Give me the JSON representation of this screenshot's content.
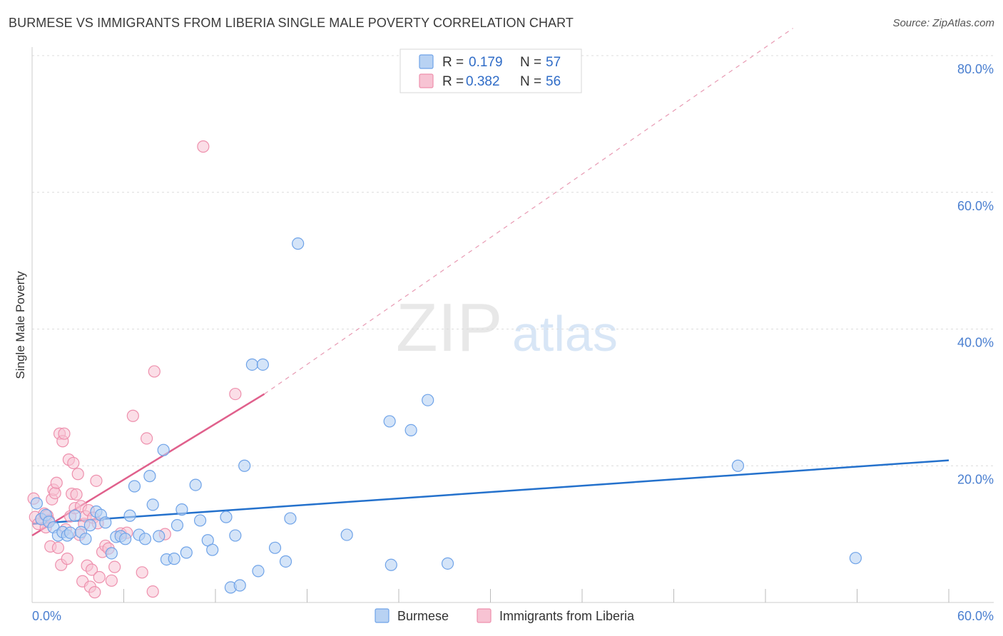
{
  "title": "BURMESE VS IMMIGRANTS FROM LIBERIA SINGLE MALE POVERTY CORRELATION CHART",
  "source": "Source: ZipAtlas.com",
  "watermark": {
    "zip": "ZIP",
    "atlas": "atlas"
  },
  "colors": {
    "blue": "#6fa3e8",
    "blue_fill": "#b8d2f3",
    "blue_line": "#2471cc",
    "pink": "#ee90ad",
    "pink_fill": "#f7c3d3",
    "pink_line": "#e0608c",
    "axis_text": "#4a7fd0",
    "grid": "#dcdcdc"
  },
  "legend": {
    "rows": [
      {
        "r_label": "R = ",
        "r_value": "0.179",
        "n_label": "N = ",
        "n_value": "57"
      },
      {
        "r_label": "R = ",
        "r_value": "0.382",
        "n_label": "N = ",
        "n_value": "56"
      }
    ]
  },
  "bottom_legend": [
    "Burmese",
    "Immigrants from Liberia"
  ],
  "chart_data": {
    "type": "scatter",
    "title": "BURMESE VS IMMIGRANTS FROM LIBERIA SINGLE MALE POVERTY CORRELATION CHART",
    "xlabel": "",
    "ylabel": "Single Male Poverty",
    "xlim": [
      0,
      60
    ],
    "ylim": [
      0,
      80
    ],
    "x_tick_labels": [
      "0.0%",
      "60.0%"
    ],
    "y_ticks": [
      20,
      40,
      60,
      80
    ],
    "y_tick_labels": [
      "20.0%",
      "40.0%",
      "60.0%",
      "80.0%"
    ],
    "series": [
      {
        "name": "Burmese",
        "r": 0.179,
        "n": 57,
        "trend": {
          "x": [
            0,
            60
          ],
          "y": [
            11.5,
            20.8
          ],
          "style": "solid"
        },
        "points": [
          [
            0.3,
            14.5
          ],
          [
            0.6,
            12.2
          ],
          [
            0.9,
            12.8
          ],
          [
            1.1,
            11.8
          ],
          [
            1.4,
            11.0
          ],
          [
            1.7,
            9.8
          ],
          [
            2.0,
            10.3
          ],
          [
            2.3,
            9.8
          ],
          [
            2.5,
            10.2
          ],
          [
            2.8,
            12.7
          ],
          [
            3.2,
            10.3
          ],
          [
            3.5,
            9.3
          ],
          [
            3.8,
            11.3
          ],
          [
            4.2,
            13.3
          ],
          [
            4.5,
            12.8
          ],
          [
            4.8,
            11.7
          ],
          [
            5.2,
            7.2
          ],
          [
            5.5,
            9.6
          ],
          [
            5.8,
            9.7
          ],
          [
            6.1,
            9.3
          ],
          [
            6.4,
            12.7
          ],
          [
            6.7,
            17.0
          ],
          [
            7.0,
            9.9
          ],
          [
            7.4,
            9.3
          ],
          [
            7.7,
            18.5
          ],
          [
            7.9,
            14.3
          ],
          [
            8.3,
            9.7
          ],
          [
            8.6,
            22.3
          ],
          [
            8.8,
            6.3
          ],
          [
            9.3,
            6.4
          ],
          [
            9.5,
            11.3
          ],
          [
            9.8,
            13.6
          ],
          [
            10.1,
            7.3
          ],
          [
            10.7,
            17.2
          ],
          [
            11.0,
            12.0
          ],
          [
            11.5,
            9.1
          ],
          [
            11.8,
            7.7
          ],
          [
            12.7,
            12.5
          ],
          [
            13.0,
            2.2
          ],
          [
            13.3,
            9.8
          ],
          [
            13.6,
            2.5
          ],
          [
            13.9,
            20.0
          ],
          [
            14.4,
            34.8
          ],
          [
            15.1,
            34.8
          ],
          [
            14.8,
            4.6
          ],
          [
            15.9,
            8.0
          ],
          [
            16.6,
            6.0
          ],
          [
            16.9,
            12.3
          ],
          [
            17.4,
            52.5
          ],
          [
            20.6,
            9.9
          ],
          [
            23.4,
            26.5
          ],
          [
            23.5,
            5.5
          ],
          [
            24.8,
            25.2
          ],
          [
            25.9,
            29.6
          ],
          [
            27.2,
            5.7
          ],
          [
            46.2,
            20.0
          ],
          [
            53.9,
            6.5
          ]
        ]
      },
      {
        "name": "Immigrants from Liberia",
        "r": 0.382,
        "n": 56,
        "trend": {
          "x": [
            0,
            15.2
          ],
          "y": [
            9.8,
            30.5
          ],
          "style": "solid"
        },
        "trend_extension": {
          "x": [
            15.2,
            49.8
          ],
          "y": [
            30.5,
            84.0
          ],
          "style": "dashed"
        },
        "points": [
          [
            0.2,
            12.5
          ],
          [
            0.4,
            11.5
          ],
          [
            0.6,
            12.2
          ],
          [
            0.8,
            13.0
          ],
          [
            0.9,
            11.0
          ],
          [
            1.0,
            12.7
          ],
          [
            1.1,
            12.0
          ],
          [
            1.2,
            8.2
          ],
          [
            1.3,
            15.1
          ],
          [
            1.4,
            16.5
          ],
          [
            1.5,
            16.0
          ],
          [
            1.6,
            17.5
          ],
          [
            1.7,
            8.0
          ],
          [
            1.8,
            24.7
          ],
          [
            1.9,
            5.5
          ],
          [
            2.0,
            23.6
          ],
          [
            2.1,
            24.7
          ],
          [
            2.2,
            10.7
          ],
          [
            2.3,
            6.4
          ],
          [
            2.4,
            20.9
          ],
          [
            2.5,
            12.6
          ],
          [
            2.6,
            15.9
          ],
          [
            2.7,
            20.4
          ],
          [
            2.8,
            13.8
          ],
          [
            2.9,
            15.8
          ],
          [
            3.0,
            18.8
          ],
          [
            3.1,
            9.9
          ],
          [
            3.2,
            14.1
          ],
          [
            3.3,
            3.1
          ],
          [
            3.4,
            11.5
          ],
          [
            3.5,
            12.6
          ],
          [
            3.6,
            5.4
          ],
          [
            3.7,
            13.5
          ],
          [
            3.8,
            2.3
          ],
          [
            3.9,
            4.8
          ],
          [
            4.0,
            12.4
          ],
          [
            4.1,
            1.5
          ],
          [
            4.2,
            17.8
          ],
          [
            4.3,
            11.6
          ],
          [
            4.4,
            3.7
          ],
          [
            4.6,
            7.4
          ],
          [
            4.8,
            8.3
          ],
          [
            5.0,
            7.9
          ],
          [
            5.2,
            3.2
          ],
          [
            5.4,
            5.2
          ],
          [
            5.8,
            10.1
          ],
          [
            6.2,
            10.2
          ],
          [
            6.6,
            27.3
          ],
          [
            7.2,
            4.4
          ],
          [
            7.5,
            24.0
          ],
          [
            7.9,
            1.6
          ],
          [
            8.0,
            33.8
          ],
          [
            8.7,
            10.0
          ],
          [
            11.2,
            66.7
          ],
          [
            13.3,
            30.5
          ],
          [
            0.1,
            15.2
          ]
        ]
      }
    ]
  }
}
